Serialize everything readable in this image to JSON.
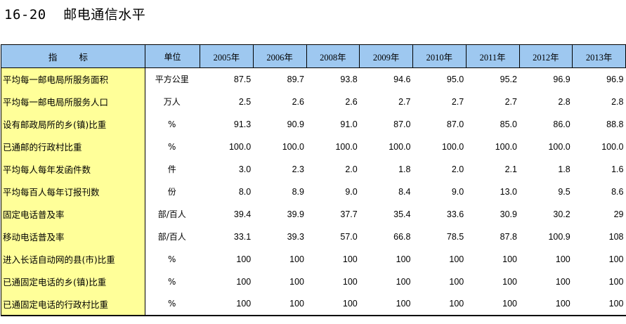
{
  "title": {
    "code": "16-20",
    "text": "邮电通信水平"
  },
  "table": {
    "header_indicator": "指 标",
    "header_unit": "单位",
    "years": [
      "2005年",
      "2006年",
      "2008年",
      "2009年",
      "2010年",
      "2011年",
      "2012年",
      "2013年"
    ],
    "rows": [
      {
        "name": "平均每一邮电局所服务面积",
        "unit": "平方公里",
        "values": [
          "87.5",
          "89.7",
          "93.8",
          "94.6",
          "95.0",
          "95.2",
          "96.9",
          "96.9"
        ]
      },
      {
        "name": "平均每一邮电局所服务人口",
        "unit": "万人",
        "values": [
          "2.5",
          "2.6",
          "2.6",
          "2.7",
          "2.7",
          "2.7",
          "2.8",
          "2.8"
        ]
      },
      {
        "name": "设有邮政局所的乡(镇)比重",
        "unit": "%",
        "values": [
          "91.3",
          "90.9",
          "91.0",
          "87.0",
          "87.0",
          "85.0",
          "86.0",
          "88.8"
        ]
      },
      {
        "name": "已通邮的行政村比重",
        "unit": "%",
        "values": [
          "100.0",
          "100.0",
          "100.0",
          "100.0",
          "100.0",
          "100.0",
          "100.0",
          "100.0"
        ]
      },
      {
        "name": "平均每人每年发函件数",
        "unit": "件",
        "values": [
          "3.0",
          "2.3",
          "2.0",
          "1.8",
          "2.0",
          "2.1",
          "1.8",
          "1.6"
        ]
      },
      {
        "name": "平均每百人每年订报刊数",
        "unit": "份",
        "values": [
          "8.0",
          "8.9",
          "9.0",
          "8.4",
          "9.0",
          "13.0",
          "9.5",
          "8.6"
        ]
      },
      {
        "name": "固定电话普及率",
        "unit": "部/百人",
        "values": [
          "39.4",
          "39.9",
          "37.7",
          "35.4",
          "33.6",
          "30.9",
          "30.2",
          "29"
        ]
      },
      {
        "name": "移动电话普及率",
        "unit": "部/百人",
        "values": [
          "33.1",
          "39.3",
          "57.0",
          "66.8",
          "78.5",
          "87.8",
          "100.9",
          "108"
        ]
      },
      {
        "name": "进入长话自动网的县(市)比重",
        "unit": "%",
        "values": [
          "100",
          "100",
          "100",
          "100",
          "100",
          "100",
          "100",
          "100"
        ]
      },
      {
        "name": "已通固定电话的乡(镇)比重",
        "unit": "%",
        "values": [
          "100",
          "100",
          "100",
          "100",
          "100",
          "100",
          "100",
          "100"
        ]
      },
      {
        "name": "已通固定电话的行政村比重",
        "unit": "%",
        "values": [
          "100",
          "100",
          "100",
          "100",
          "100",
          "100",
          "100",
          "100"
        ]
      }
    ]
  }
}
